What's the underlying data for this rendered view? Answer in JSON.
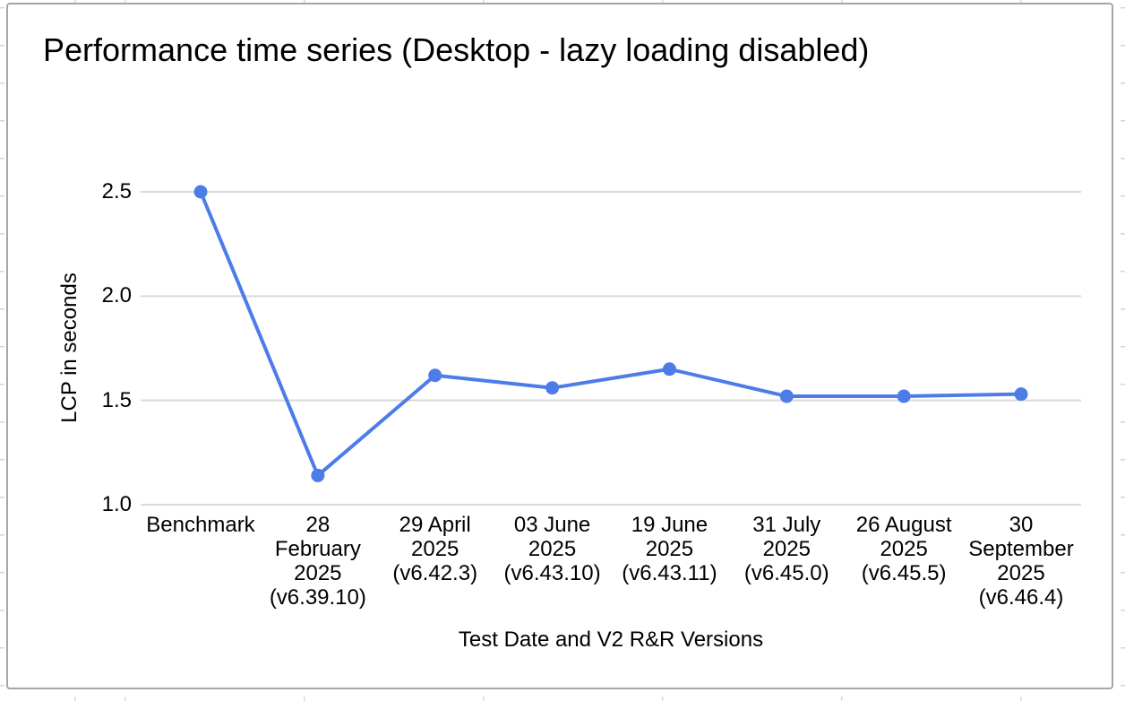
{
  "widget": {
    "border_color": "#a6a6a6",
    "background": "#ffffff"
  },
  "chart_data": {
    "type": "line",
    "title": "Performance time series (Desktop - lazy loading disabled)",
    "xlabel": "Test Date and V2 R&R Versions",
    "ylabel": "LCP in seconds",
    "categories": [
      "Benchmark",
      "28 February 2025 (v6.39.10)",
      "29 April 2025 (v6.42.3)",
      "03 June 2025 (v6.43.10)",
      "19 June 2025 (v6.43.11)",
      "31 July 2025 (v6.45.0)",
      "26 August 2025 (v6.45.5)",
      "30 September 2025 (v6.46.4)"
    ],
    "x_tick_lines": [
      [
        "Benchmark"
      ],
      [
        "28",
        "February",
        "2025",
        "(v6.39.10)"
      ],
      [
        "29 April",
        "2025",
        "(v6.42.3)"
      ],
      [
        "03 June",
        "2025",
        "(v6.43.10)"
      ],
      [
        "19 June",
        "2025",
        "(v6.43.11)"
      ],
      [
        "31 July",
        "2025",
        "(v6.45.0)"
      ],
      [
        "26 August",
        "2025",
        "(v6.45.5)"
      ],
      [
        "30",
        "September",
        "2025",
        "(v6.46.4)"
      ]
    ],
    "series": [
      {
        "color": "#4c7ce8",
        "values": [
          2.5,
          1.14,
          1.62,
          1.56,
          1.65,
          1.52,
          1.52,
          1.53
        ]
      }
    ],
    "yticks": [
      1.0,
      1.5,
      2.0,
      2.5
    ],
    "ytick_labels": [
      "1.0",
      "1.5",
      "2.0",
      "2.5"
    ],
    "ylim": [
      1.0,
      2.5
    ],
    "grid": "horizontal",
    "grid_color": "#d9d9d9",
    "text_color": "#000000",
    "legend": "none",
    "marker": "circle"
  }
}
